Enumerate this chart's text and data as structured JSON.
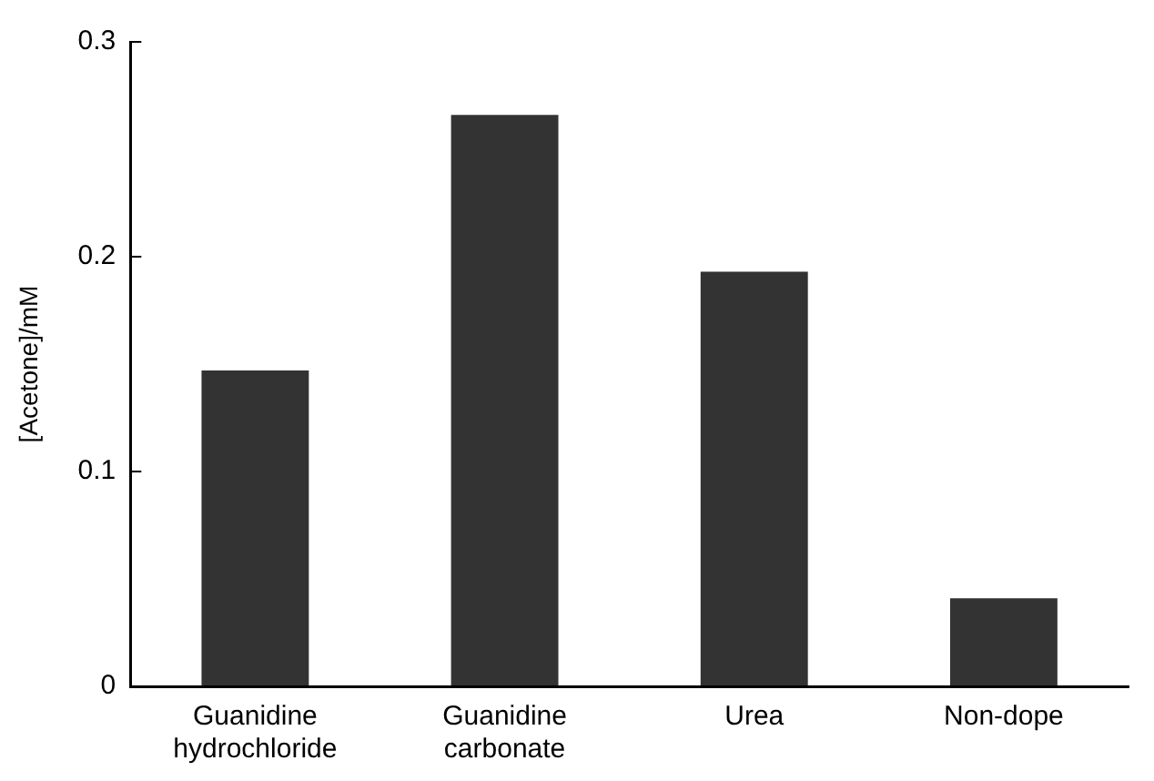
{
  "chart_data": {
    "type": "bar",
    "ylabel": "[Acetone]/mM",
    "categories": [
      "Guanidine hydrochloride",
      "Guanidine carbonate",
      "Urea",
      "Non-dope"
    ],
    "values": [
      0.147,
      0.266,
      0.193,
      0.041
    ],
    "color": "#333333",
    "ylim": [
      0,
      0.3
    ],
    "yticks": [
      0,
      0.1,
      0.2,
      0.3
    ],
    "grid": false,
    "legend": false
  }
}
